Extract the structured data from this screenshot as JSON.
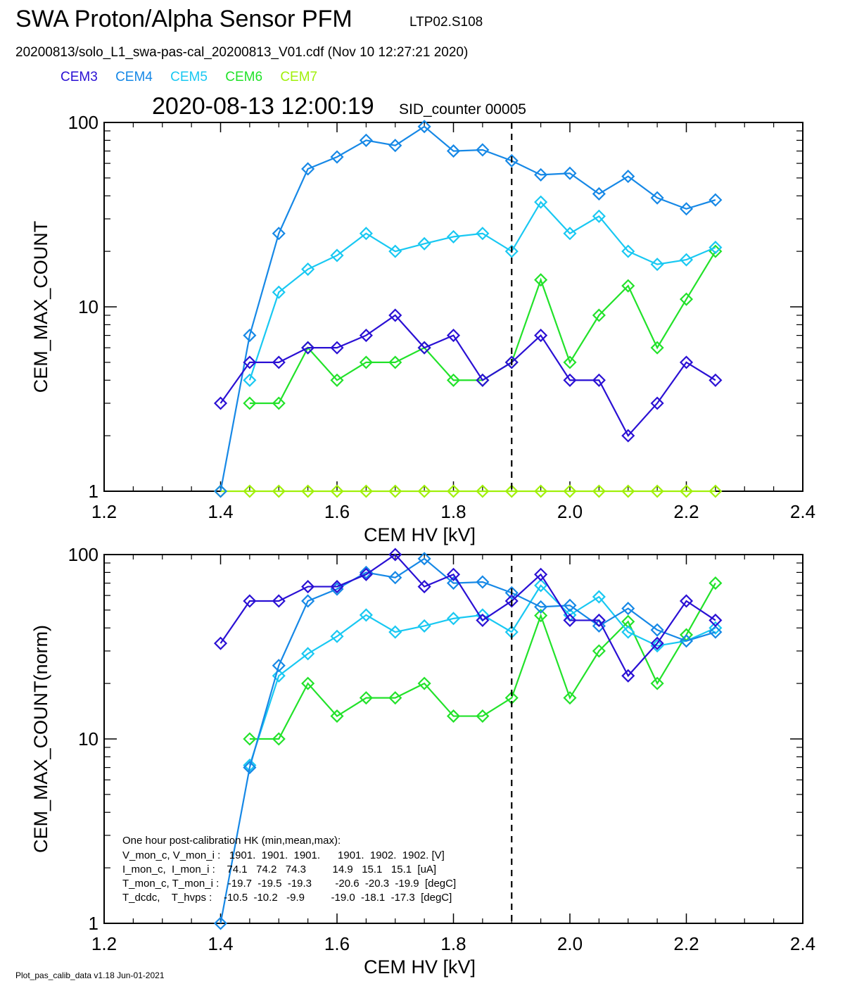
{
  "header": {
    "title": "SWA Proton/Alpha Sensor PFM",
    "run_id": "LTP02.S108",
    "file_line": "20200813/solo_L1_swa-pas-cal_20200813_V01.cdf  (Nov 10 12:27:21 2020)",
    "timestamp": "2020-08-13 12:00:19",
    "sid_counter": "SID_counter 00005"
  },
  "legend": [
    {
      "name": "CEM3",
      "color": "#2a10d4"
    },
    {
      "name": "CEM4",
      "color": "#1688e6"
    },
    {
      "name": "CEM5",
      "color": "#18c8f2"
    },
    {
      "name": "CEM6",
      "color": "#22e22a"
    },
    {
      "name": "CEM7",
      "color": "#a0f00a"
    }
  ],
  "footer": "Plot_pas_calib_data v1.18 Jun-01-2021",
  "hk_box": {
    "title": "One hour post-calibration HK (min,mean,max):",
    "rows": [
      "V_mon_c, V_mon_i :   1901.  1901.  1901.      1901.  1902.  1902. [V]",
      "I_mon_c,  I_mon_i :    74.1   74.2   74.3         14.9   15.1   15.1  [uA]",
      "T_mon_c, T_mon_i :   -19.7  -19.5  -19.3        -20.6  -20.3  -19.9  [degC]",
      "T_dcdc,    T_hvps :    -10.5  -10.2   -9.9         -19.0  -18.1  -17.3  [degC]"
    ]
  },
  "chart_data": [
    {
      "type": "line",
      "scale": "log",
      "xlabel": "CEM HV [kV]",
      "ylabel": "CEM_MAX_COUNT",
      "xlim": [
        1.2,
        2.4
      ],
      "ylim": [
        1,
        100
      ],
      "xticks": [
        "1.2",
        "1.4",
        "1.6",
        "1.8",
        "2.0",
        "2.2",
        "2.4"
      ],
      "yticks": [
        "1",
        "10",
        "100"
      ],
      "vline": 1.9,
      "x": [
        1.4,
        1.45,
        1.5,
        1.55,
        1.6,
        1.65,
        1.7,
        1.75,
        1.8,
        1.85,
        1.9,
        1.95,
        2.0,
        2.05,
        2.1,
        2.15,
        2.2,
        2.25
      ],
      "series": [
        {
          "name": "CEM7",
          "color": "#a0f00a",
          "values": [
            1,
            1,
            1,
            1,
            1,
            1,
            1,
            1,
            1,
            1,
            1,
            1,
            1,
            1,
            1,
            1,
            1,
            1
          ]
        },
        {
          "name": "CEM6",
          "color": "#22e22a",
          "values": [
            null,
            3,
            3,
            6,
            4,
            5,
            5,
            6,
            4,
            4,
            5,
            14,
            5,
            9,
            13,
            6,
            11,
            20
          ]
        },
        {
          "name": "CEM5",
          "color": "#18c8f2",
          "values": [
            null,
            4,
            12,
            16,
            19,
            25,
            20,
            22,
            24,
            25,
            20,
            37,
            25,
            31,
            20,
            17,
            18,
            21
          ]
        },
        {
          "name": "CEM4",
          "color": "#1688e6",
          "values": [
            1,
            7,
            25,
            56,
            65,
            80,
            75,
            95,
            70,
            71,
            62,
            52,
            53,
            41,
            51,
            39,
            34,
            38
          ]
        },
        {
          "name": "CEM3",
          "color": "#2a10d4",
          "values": [
            3,
            5,
            5,
            6,
            6,
            7,
            9,
            6,
            7,
            4,
            5,
            7,
            4,
            4,
            2,
            3,
            5,
            4
          ]
        }
      ]
    },
    {
      "type": "line",
      "scale": "log",
      "xlabel": "CEM HV [kV]",
      "ylabel": "CEM_MAX_COUNT(norm)",
      "xlim": [
        1.2,
        2.4
      ],
      "ylim": [
        1,
        100
      ],
      "xticks": [
        "1.2",
        "1.4",
        "1.6",
        "1.8",
        "2.0",
        "2.2",
        "2.4"
      ],
      "yticks": [
        "1",
        "10",
        "100"
      ],
      "vline": 1.9,
      "x": [
        1.4,
        1.45,
        1.5,
        1.55,
        1.6,
        1.65,
        1.7,
        1.75,
        1.8,
        1.85,
        1.9,
        1.95,
        2.0,
        2.05,
        2.1,
        2.15,
        2.2,
        2.25
      ],
      "series": [
        {
          "name": "CEM6",
          "color": "#22e22a",
          "values": [
            null,
            10,
            10,
            20,
            13.3,
            16.7,
            16.7,
            20,
            13.3,
            13.3,
            16.7,
            46.7,
            16.7,
            30,
            43.3,
            20,
            36.7,
            70
          ]
        },
        {
          "name": "CEM5",
          "color": "#18c8f2",
          "values": [
            null,
            7.2,
            22,
            29,
            36,
            47,
            38,
            41,
            45,
            47,
            38,
            68,
            47,
            59,
            38,
            32,
            34,
            40
          ]
        },
        {
          "name": "CEM4",
          "color": "#1688e6",
          "values": [
            1,
            7,
            25,
            56,
            65,
            80,
            75,
            95,
            70,
            71,
            62,
            52,
            53,
            41,
            51,
            39,
            34,
            38
          ]
        },
        {
          "name": "CEM3",
          "color": "#2a10d4",
          "values": [
            33,
            56,
            56,
            67,
            67,
            78,
            100,
            67,
            78,
            44,
            56,
            78,
            44,
            44,
            22,
            33,
            56,
            44
          ]
        }
      ]
    }
  ]
}
